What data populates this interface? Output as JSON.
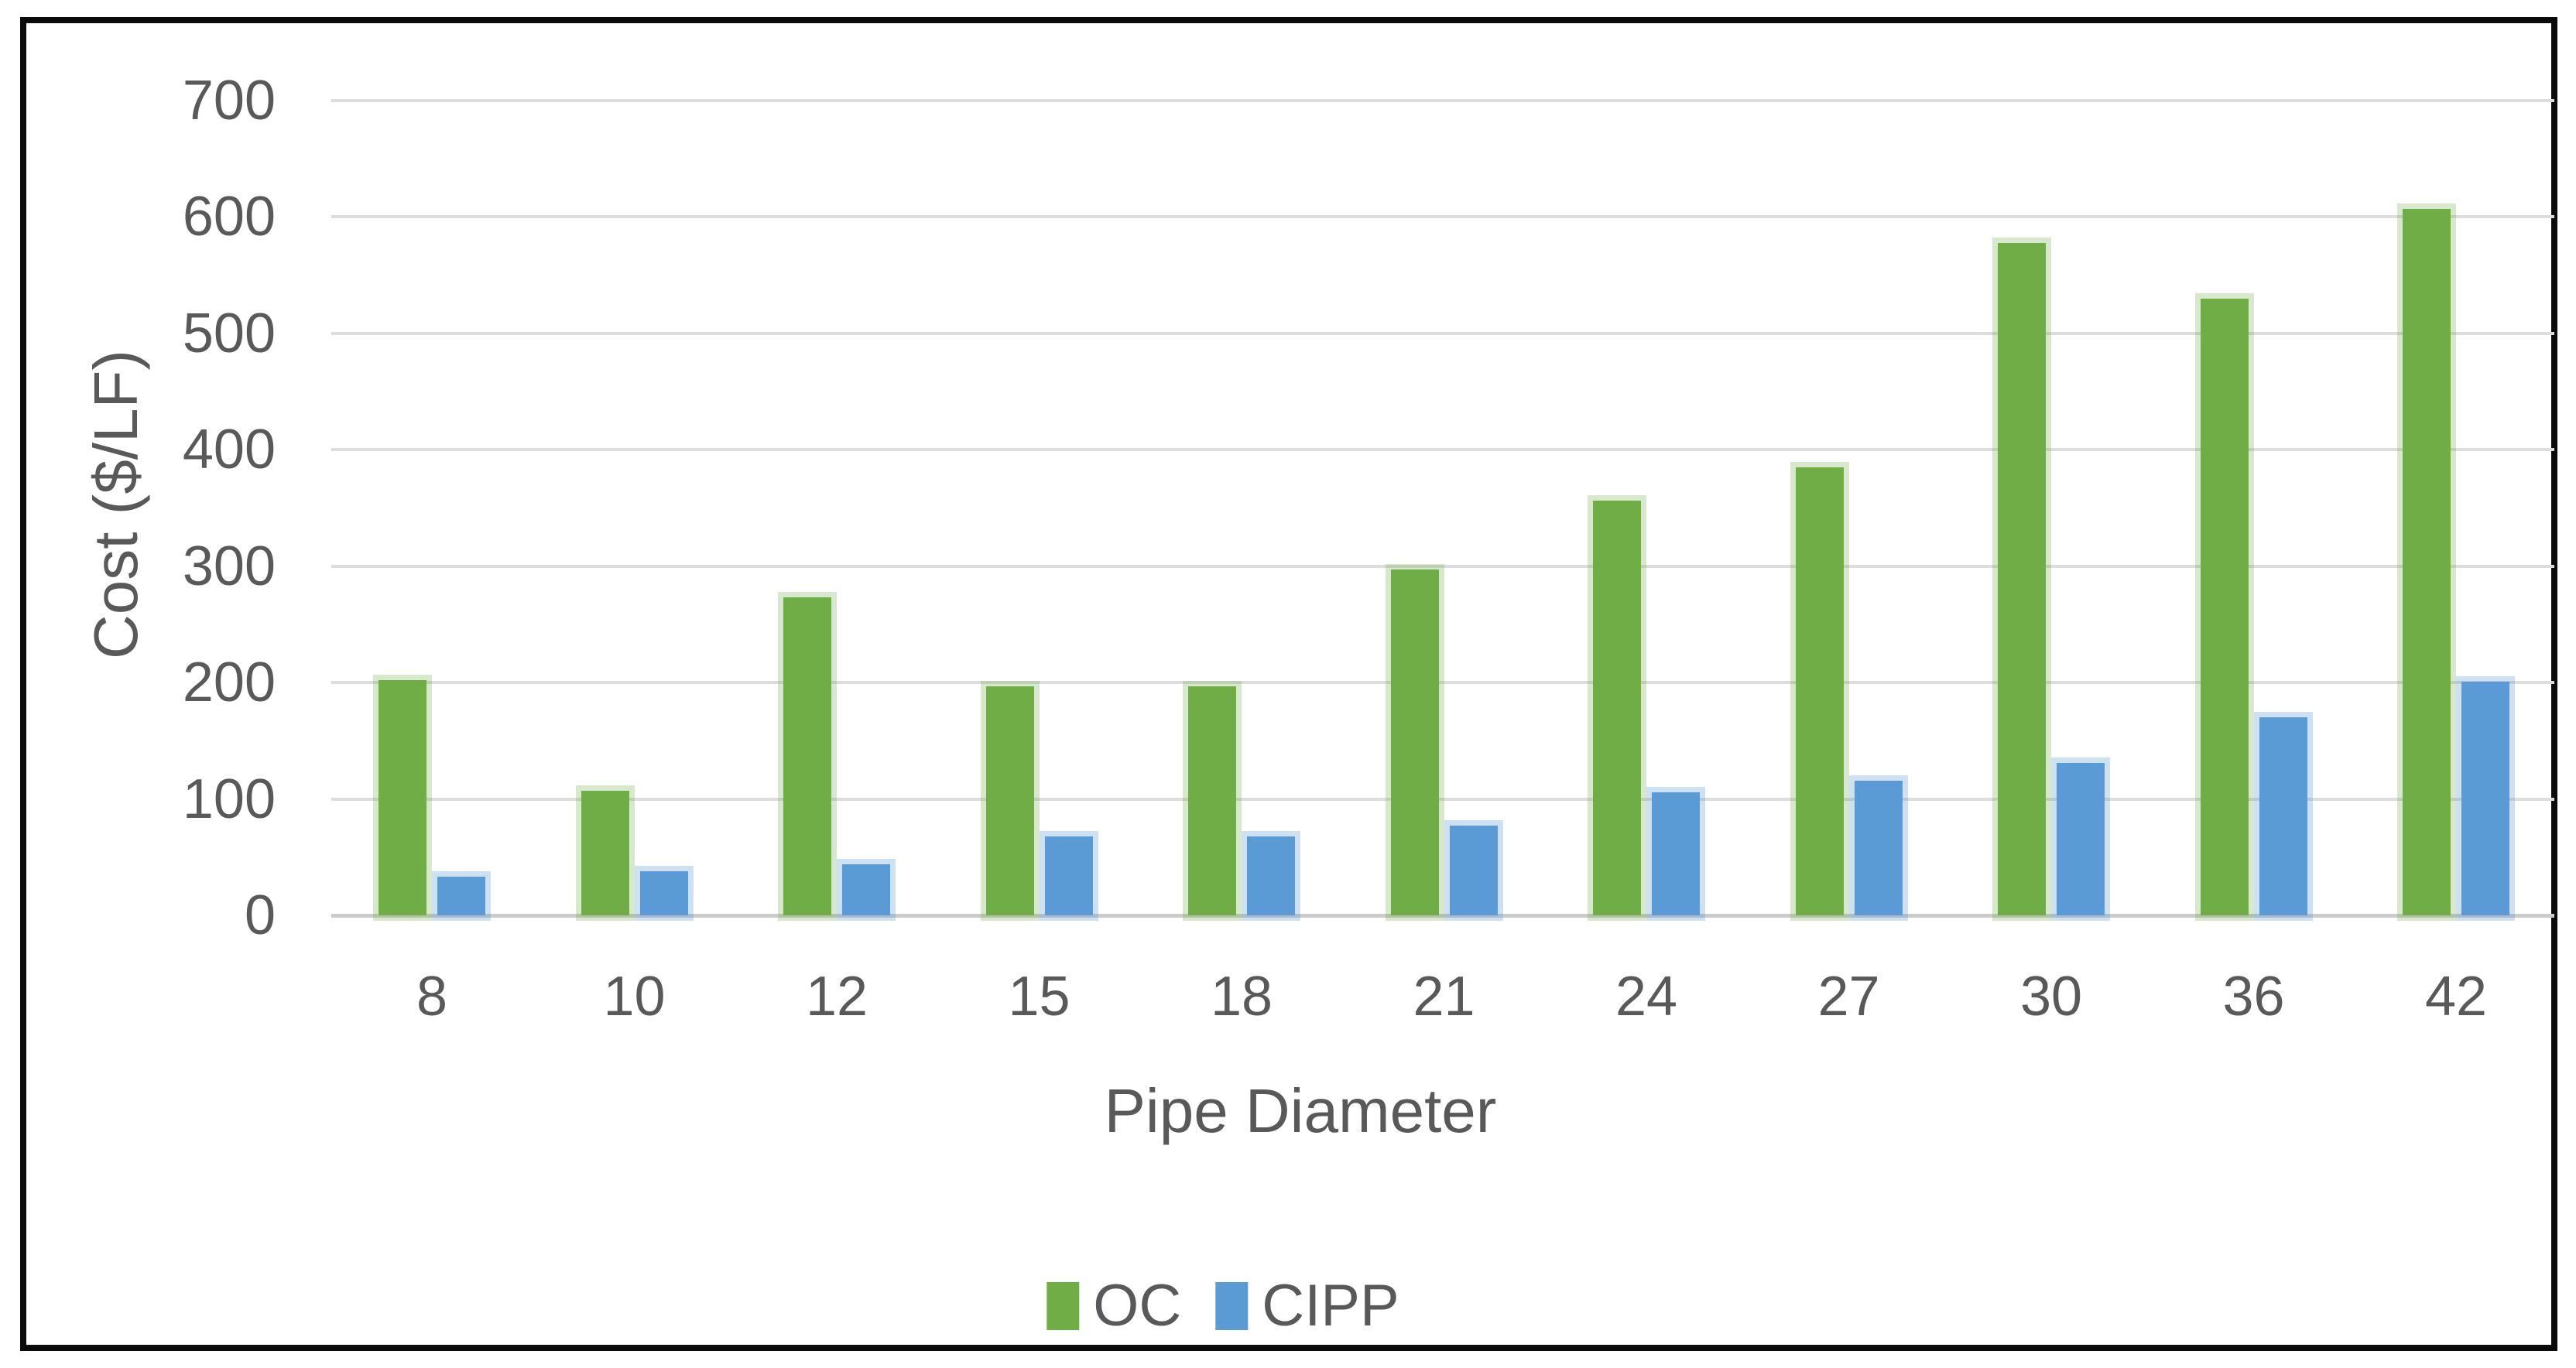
{
  "figure": {
    "background": "#FFFFFF",
    "border_color": "#0B0B0B",
    "text_color": "#595959",
    "gridline_color": "#DDDDDD",
    "zero_line_color": "#CCCCCC"
  },
  "chart_data": {
    "type": "bar",
    "title": "",
    "xlabel": "Pipe Diameter",
    "ylabel": "Cost ($/LF)",
    "categories": [
      "8",
      "10",
      "12",
      "15",
      "18",
      "21",
      "24",
      "27",
      "30",
      "36",
      "42"
    ],
    "series": [
      {
        "name": "OC",
        "color": "#70AD47",
        "halo_color": "rgba(112,173,71,0.28)",
        "values": [
          202,
          107,
          273,
          197,
          197,
          297,
          356,
          385,
          578,
          530,
          607
        ]
      },
      {
        "name": "CIPP",
        "color": "#5B9BD5",
        "halo_color": "rgba(91,155,213,0.30)",
        "values": [
          33,
          38,
          44,
          68,
          68,
          77,
          106,
          116,
          131,
          170,
          201
        ]
      }
    ],
    "ylim": [
      0,
      700
    ],
    "y_ticks": [
      0,
      100,
      200,
      300,
      400,
      500,
      600,
      700
    ],
    "grid": "horizontal",
    "legend_position": "bottom"
  }
}
